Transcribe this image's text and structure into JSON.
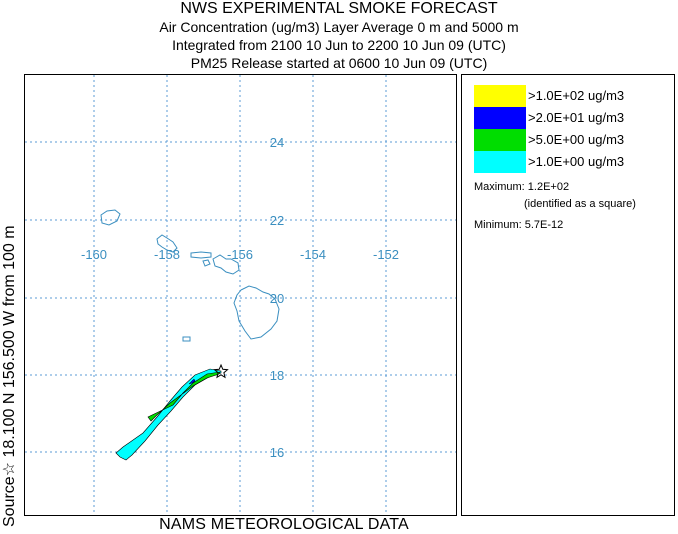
{
  "header": {
    "title": "NWS EXPERIMENTAL SMOKE FORECAST",
    "line1": "Air Concentration (ug/m3) Layer Average    0 m and  5000 m",
    "line2": "Integrated from 2100 10 Jun to 2200 10 Jun 09 (UTC)",
    "line3": "PM25 Release started at 0600 10 Jun 09 (UTC)"
  },
  "side_label": "Source☆ 18.100  N 156.500  W    from  100 m",
  "bottom_label": "NAMS METEOROLOGICAL DATA",
  "map": {
    "lon_labels": [
      "-160",
      "-158",
      "-156",
      "-154",
      "-152"
    ],
    "lat_labels": [
      "24",
      "22",
      "20",
      "18",
      "16"
    ],
    "colors": {
      "grid": "#5b9bd5",
      "coast": "#3b8fc0",
      "label": "#3b8fc0"
    }
  },
  "legend": {
    "items": [
      {
        "label": ">1.0E+02 ug/m3",
        "color": "#ffff00"
      },
      {
        "label": ">2.0E+01 ug/m3",
        "color": "#0000ff"
      },
      {
        "label": ">5.0E+00 ug/m3",
        "color": "#00dd00"
      },
      {
        "label": ">1.0E+00 ug/m3",
        "color": "#00ffff"
      }
    ],
    "maximum": "Maximum: 1.2E+02",
    "maximum_note": "(identified as a square)",
    "minimum": "Minimum: 5.7E-12"
  }
}
